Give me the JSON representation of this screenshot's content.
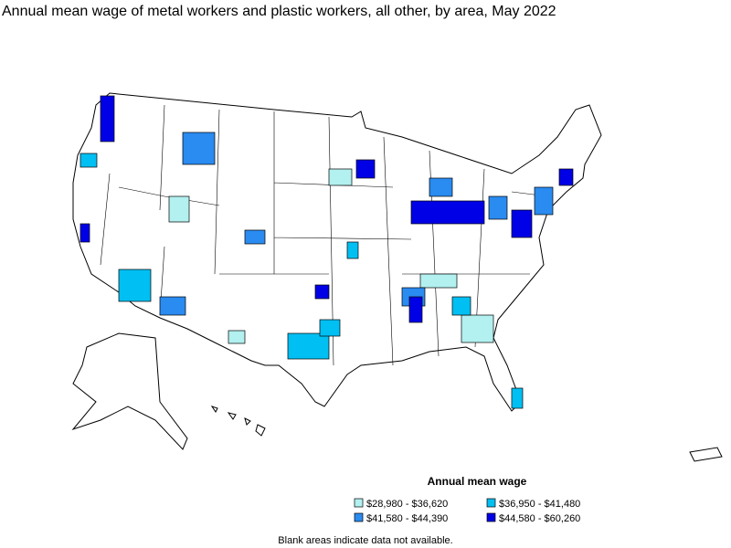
{
  "title": "Annual mean wage of metal workers and plastic workers, all other, by area, May 2022",
  "legend": {
    "title": "Annual mean wage",
    "items": [
      {
        "label": "$28,980 - $36,620",
        "color": "#b3f0f0"
      },
      {
        "label": "$36,950 - $41,480",
        "color": "#00bff2"
      },
      {
        "label": "$41,580 - $44,390",
        "color": "#2a8bf0"
      },
      {
        "label": "$44,580 - $60,260",
        "color": "#0000e6"
      }
    ]
  },
  "footnote": "Blank areas indicate data not available."
}
